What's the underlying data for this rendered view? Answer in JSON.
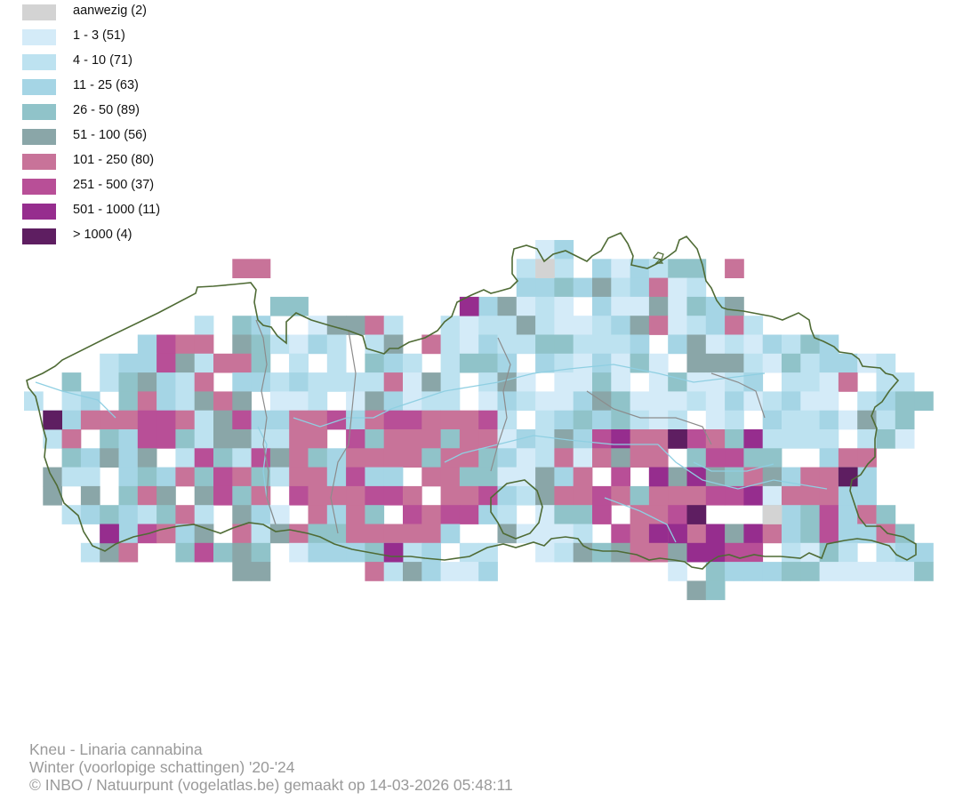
{
  "legend": {
    "items": [
      {
        "label": "aanwezig (2)",
        "color": "#d3d3d3"
      },
      {
        "label": "1 - 3 (51)",
        "color": "#d4ebf8"
      },
      {
        "label": "4 - 10 (71)",
        "color": "#bde2f0"
      },
      {
        "label": "11 - 25 (63)",
        "color": "#a5d5e5"
      },
      {
        "label": "26 - 50 (89)",
        "color": "#90c3c9"
      },
      {
        "label": "51 - 100 (56)",
        "color": "#8aa6a8"
      },
      {
        "label": "101 - 250 (80)",
        "color": "#c87399"
      },
      {
        "label": "251 - 500 (37)",
        "color": "#b84f97"
      },
      {
        "label": "501 - 1000 (11)",
        "color": "#962d8e"
      },
      {
        "label": "> 1000 (4)",
        "color": "#5e1e61"
      }
    ]
  },
  "map": {
    "border_color": "#4f6b35",
    "river_color": "#8fcfe2",
    "province_border_color": "#8c8c8c"
  },
  "credits": {
    "species": "Kneu - Linaria cannabina",
    "season": "Winter (voorlopige schattingen) '20-'24",
    "source": "© INBO / Natuurpunt (vogelatlas.be) gemaakt op 14-03-2026 05:48:11"
  }
}
